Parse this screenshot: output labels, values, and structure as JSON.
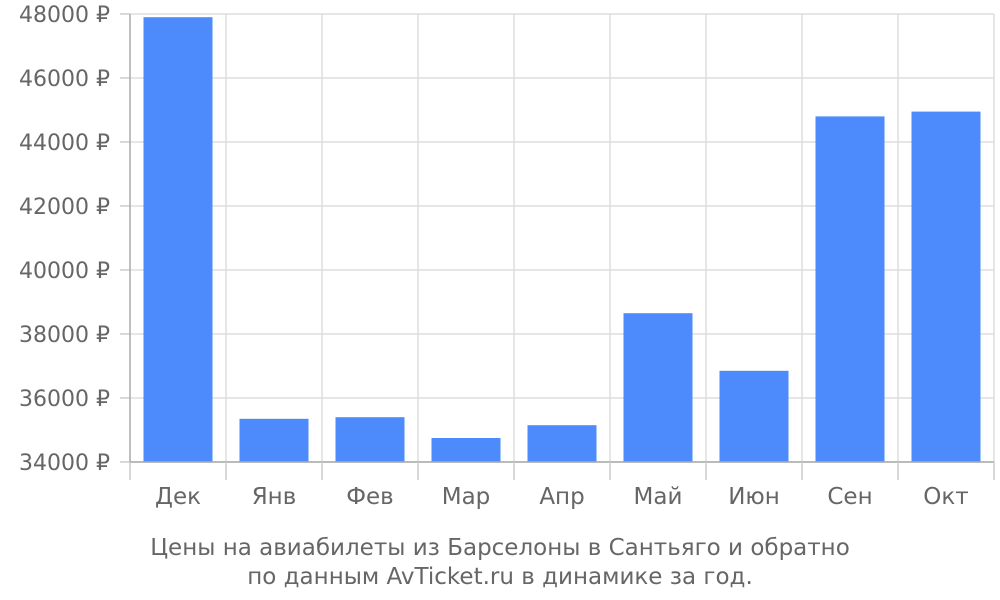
{
  "chart_data": {
    "type": "bar",
    "categories": [
      "Дек",
      "Янв",
      "Фев",
      "Мар",
      "Апр",
      "Май",
      "Июн",
      "Сен",
      "Окт"
    ],
    "values": [
      47900,
      35350,
      35400,
      34750,
      35150,
      38650,
      36850,
      44800,
      44950
    ],
    "ylim": [
      34000,
      48000
    ],
    "yticks": [
      34000,
      36000,
      38000,
      40000,
      42000,
      44000,
      46000,
      48000
    ],
    "ytick_labels": [
      "34000 ₽",
      "36000 ₽",
      "38000 ₽",
      "40000 ₽",
      "42000 ₽",
      "44000 ₽",
      "46000 ₽",
      "48000 ₽"
    ],
    "grid": true,
    "bar_color": "#4d8afb",
    "caption": [
      "Цены на авиабилеты из Барселоны в Сантьяго и обратно",
      "по данным AvTicket.ru в динамике за год."
    ]
  }
}
